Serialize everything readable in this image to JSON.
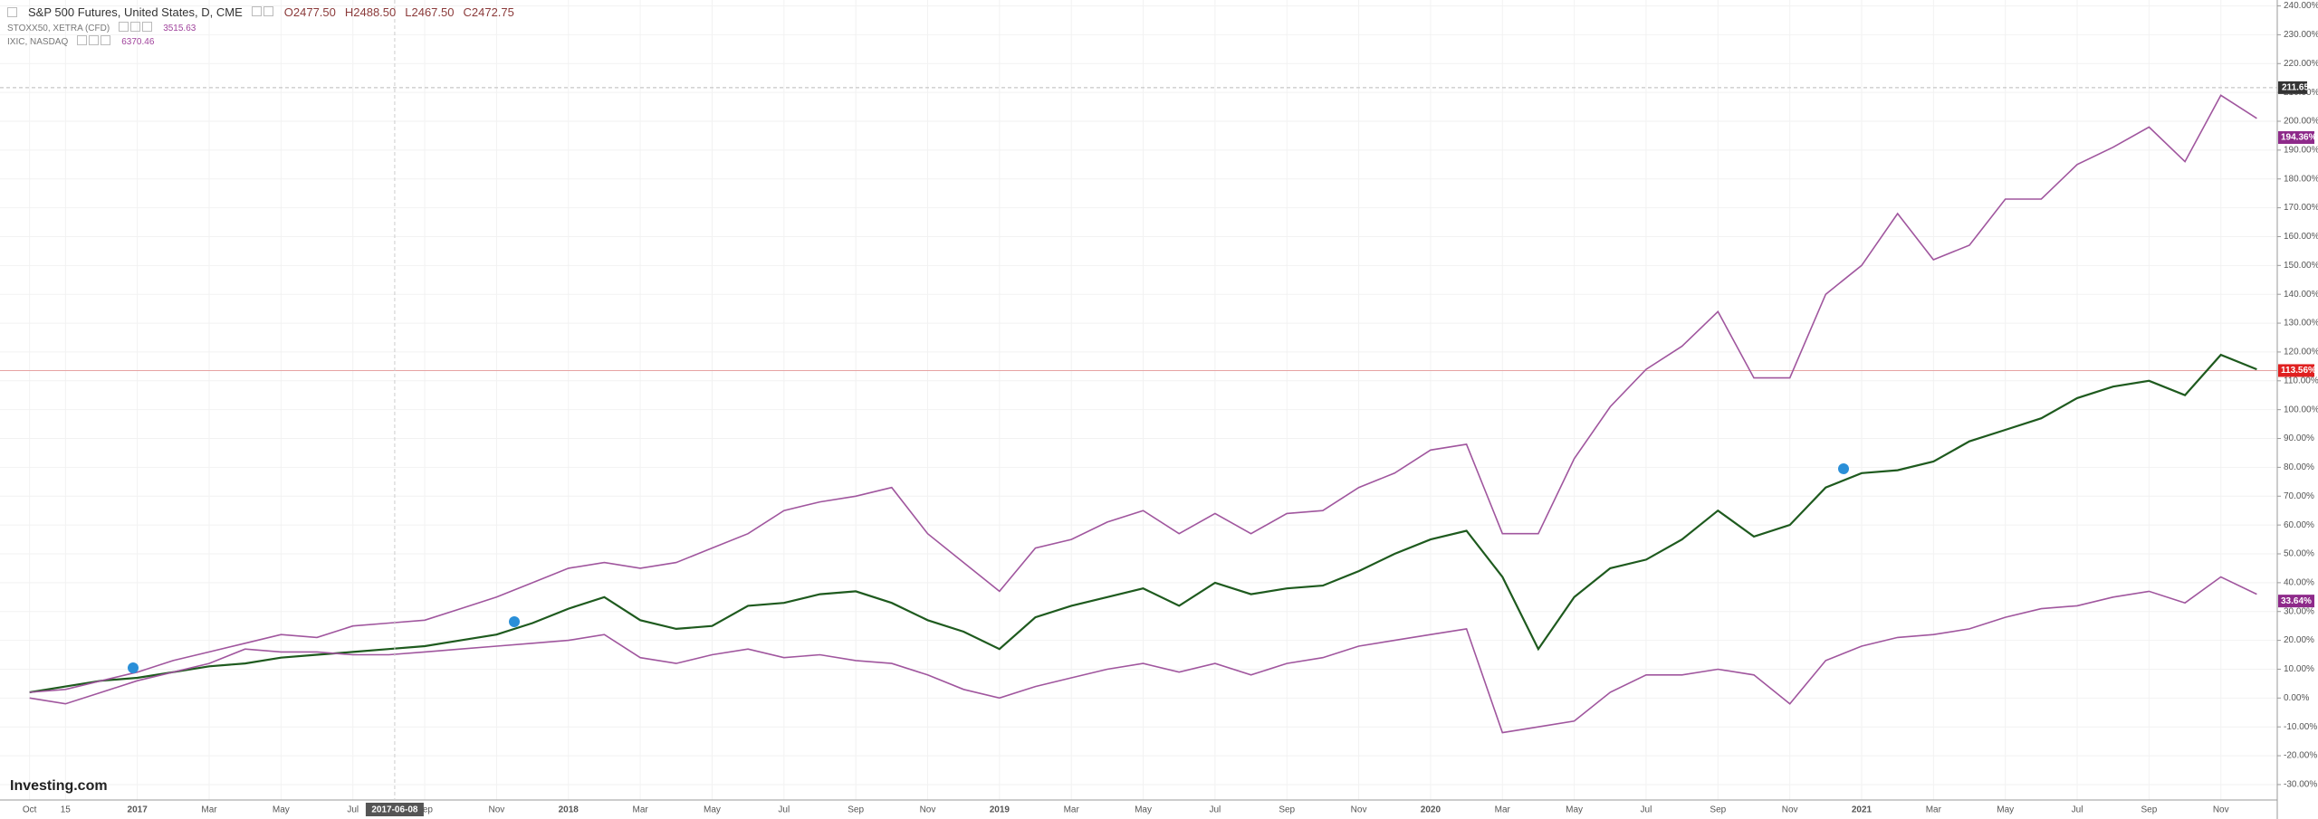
{
  "chart_data": {
    "type": "line",
    "categories": [
      "Oct",
      "15",
      null,
      "2017",
      null,
      "Mar",
      null,
      "May",
      null,
      "Jul",
      null,
      "Sep",
      null,
      "Nov",
      null,
      "2018",
      null,
      "Mar",
      null,
      "May",
      null,
      "Jul",
      null,
      "Sep",
      null,
      "Nov",
      null,
      "2019",
      null,
      "Mar",
      null,
      "May",
      null,
      "Jul",
      null,
      "Sep",
      null,
      "Nov",
      null,
      "2020",
      null,
      "Mar",
      null,
      "May",
      null,
      "Jul",
      null,
      "Sep",
      null,
      "Nov",
      null,
      "2021",
      null,
      "Mar",
      null,
      "May",
      null,
      "Jul",
      null,
      "Sep",
      null,
      "Nov",
      null
    ],
    "series": [
      {
        "name": "S&P 500 Futures, United States, D, CME",
        "color": "#1e5a1e",
        "ohlc_labels": [
          "O2477.50",
          "H2488.50",
          "L2467.50",
          "C2472.75"
        ],
        "last": 113.56,
        "last_label": "113.56%",
        "tag_color": "#e02020",
        "values": [
          2,
          4,
          6,
          7,
          9,
          11,
          12,
          14,
          15,
          16,
          17,
          18,
          20,
          22,
          26,
          31,
          35,
          27,
          24,
          25,
          32,
          33,
          36,
          37,
          33,
          27,
          23,
          17,
          28,
          32,
          35,
          38,
          32,
          40,
          36,
          38,
          39,
          44,
          50,
          55,
          58,
          42,
          17,
          35,
          45,
          48,
          55,
          65,
          56,
          60,
          73,
          78,
          79,
          82,
          89,
          93,
          97,
          104,
          108,
          110,
          105,
          119,
          114
        ]
      },
      {
        "name": "STOXX50, XETRA (CFD)",
        "color": "#a0569e",
        "last_value": 3515.63,
        "last": 33.64,
        "last_label": "33.64%",
        "tag_color": "#8e2a8a",
        "values": [
          0,
          -2,
          2,
          6,
          9,
          12,
          17,
          16,
          16,
          15,
          15,
          16,
          17,
          18,
          19,
          20,
          22,
          14,
          12,
          15,
          17,
          14,
          15,
          13,
          12,
          8,
          3,
          0,
          4,
          7,
          10,
          12,
          9,
          12,
          8,
          12,
          14,
          18,
          20,
          22,
          24,
          -12,
          -10,
          -8,
          2,
          8,
          8,
          10,
          8,
          -2,
          13,
          18,
          21,
          22,
          24,
          28,
          31,
          32,
          35,
          37,
          33,
          42,
          36
        ]
      },
      {
        "name": "IXIC, NASDAQ",
        "color": "#a0569e",
        "last_value": 6370.46,
        "last": 194.36,
        "last_label": "194.36%",
        "tag_color": "#8e2a8a",
        "values": [
          2,
          3,
          6,
          9,
          13,
          16,
          19,
          22,
          21,
          25,
          26,
          27,
          31,
          35,
          40,
          45,
          47,
          45,
          47,
          52,
          57,
          65,
          68,
          70,
          73,
          57,
          47,
          37,
          52,
          55,
          61,
          65,
          57,
          64,
          57,
          64,
          65,
          73,
          78,
          86,
          88,
          57,
          57,
          83,
          101,
          114,
          122,
          134,
          111,
          111,
          140,
          150,
          168,
          152,
          157,
          173,
          173,
          185,
          191,
          198,
          186,
          209,
          201
        ]
      }
    ],
    "ylim": [
      -30,
      240
    ],
    "yticks": [
      {
        "value": 240,
        "label": "240.00%"
      },
      {
        "value": 230,
        "label": "230.00%"
      },
      {
        "value": 220,
        "label": "220.00%"
      },
      {
        "value": 210,
        "label": "210.00%"
      },
      {
        "value": 200,
        "label": "200.00%"
      },
      {
        "value": 190,
        "label": "190.00%"
      },
      {
        "value": 180,
        "label": "180.00%"
      },
      {
        "value": 170,
        "label": "170.00%"
      },
      {
        "value": 160,
        "label": "160.00%"
      },
      {
        "value": 150,
        "label": "150.00%"
      },
      {
        "value": 140,
        "label": "140.00%"
      },
      {
        "value": 130,
        "label": "130.00%"
      },
      {
        "value": 120,
        "label": "120.00%"
      },
      {
        "value": 110,
        "label": "110.00%"
      },
      {
        "value": 100,
        "label": "100.00%"
      },
      {
        "value": 90,
        "label": "90.00%"
      },
      {
        "value": 80,
        "label": "80.00%"
      },
      {
        "value": 70,
        "label": "70.00%"
      },
      {
        "value": 60,
        "label": "60.00%"
      },
      {
        "value": 50,
        "label": "50.00%"
      },
      {
        "value": 40,
        "label": "40.00%"
      },
      {
        "value": 30,
        "label": "30.00%"
      },
      {
        "value": 20,
        "label": "20.00%"
      },
      {
        "value": 10,
        "label": "10.00%"
      },
      {
        "value": 0,
        "label": "0.00%"
      },
      {
        "value": -10,
        "label": "-10.00%"
      },
      {
        "value": -20,
        "label": "-20.00%"
      },
      {
        "value": -30,
        "label": "-30.00%"
      }
    ],
    "grid": true,
    "crosshair": {
      "x_label": "2017-06-08",
      "y_label": {
        "value": 211.65,
        "label": "211.65"
      }
    },
    "watermark": "Investing.com"
  }
}
